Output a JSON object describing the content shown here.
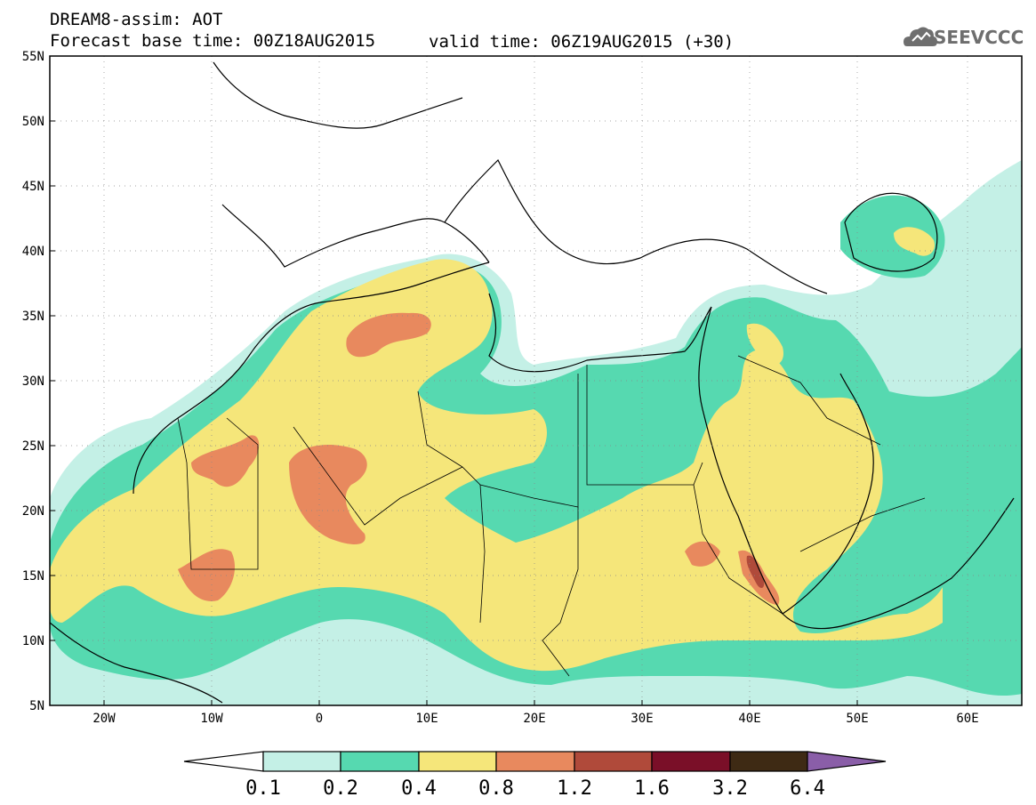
{
  "title": {
    "line1": "DREAM8-assim: AOT",
    "line2a": "Forecast base time: 00Z18AUG2015",
    "line2b": "valid time: 06Z19AUG2015 (+30)"
  },
  "logo": {
    "text": "SEEVCCC",
    "icon": "cloud-icon"
  },
  "axes": {
    "lat_labels": [
      "55N",
      "50N",
      "45N",
      "40N",
      "35N",
      "30N",
      "25N",
      "20N",
      "15N",
      "10N",
      "5N"
    ],
    "lon_labels": [
      "20W",
      "10W",
      "0",
      "10E",
      "20E",
      "30E",
      "40E",
      "50E",
      "60E"
    ]
  },
  "colorbar": {
    "labels": [
      "0.1",
      "0.2",
      "0.4",
      "0.8",
      "1.2",
      "1.6",
      "3.2",
      "6.4"
    ],
    "colors": [
      "#ffffff",
      "#c4f0e6",
      "#56d9b0",
      "#f5e67a",
      "#e8895e",
      "#b04a3a",
      "#7a0f28",
      "#3e2a14",
      "#8a5ea8"
    ]
  },
  "colors": {
    "low": "#c4f0e6",
    "mid": "#56d9b0",
    "yellow": "#f5e67a",
    "orange": "#e8895e",
    "redbrown": "#b04a3a"
  }
}
